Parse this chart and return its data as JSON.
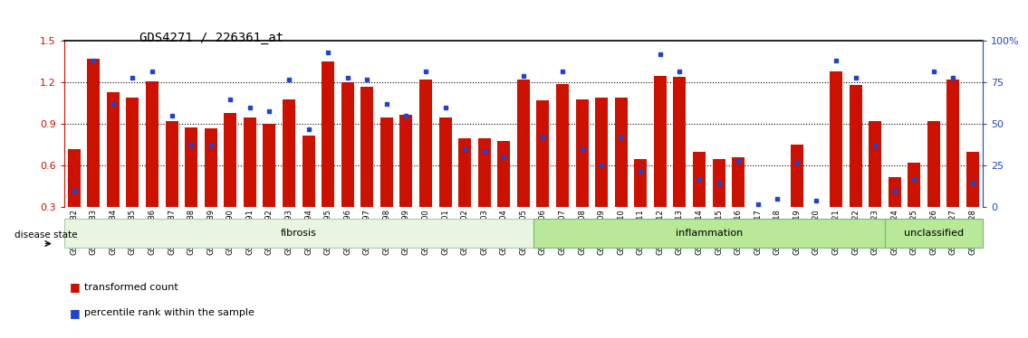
{
  "title": "GDS4271 / 226361_at",
  "samples": [
    "GSM380382",
    "GSM380383",
    "GSM380384",
    "GSM380385",
    "GSM380386",
    "GSM380387",
    "GSM380388",
    "GSM380389",
    "GSM380390",
    "GSM380391",
    "GSM380392",
    "GSM380393",
    "GSM380394",
    "GSM380395",
    "GSM380396",
    "GSM380397",
    "GSM380398",
    "GSM380399",
    "GSM380400",
    "GSM380401",
    "GSM380402",
    "GSM380403",
    "GSM380404",
    "GSM380405",
    "GSM380406",
    "GSM380407",
    "GSM380408",
    "GSM380409",
    "GSM380410",
    "GSM380411",
    "GSM380412",
    "GSM380413",
    "GSM380414",
    "GSM380415",
    "GSM380416",
    "GSM380417",
    "GSM380418",
    "GSM380419",
    "GSM380420",
    "GSM380421",
    "GSM380422",
    "GSM380423",
    "GSM380424",
    "GSM380425",
    "GSM380426",
    "GSM380427",
    "GSM380428"
  ],
  "bar_heights": [
    0.72,
    1.37,
    1.13,
    1.09,
    1.21,
    0.92,
    0.88,
    0.87,
    0.98,
    0.95,
    0.9,
    1.08,
    0.82,
    1.35,
    1.2,
    1.17,
    0.95,
    0.97,
    1.22,
    0.95,
    0.8,
    0.8,
    0.78,
    1.22,
    1.07,
    1.19,
    1.08,
    1.09,
    1.09,
    0.65,
    1.25,
    1.24,
    0.7,
    0.65,
    0.66,
    0.3,
    0.25,
    0.75,
    0.17,
    1.28,
    1.18,
    0.92,
    0.52,
    0.62,
    0.92,
    1.22,
    0.7
  ],
  "percentile_ranks": [
    10,
    88,
    62,
    78,
    82,
    55,
    38,
    37,
    65,
    60,
    58,
    77,
    47,
    93,
    78,
    77,
    62,
    55,
    82,
    60,
    35,
    34,
    30,
    79,
    42,
    82,
    35,
    25,
    42,
    22,
    92,
    82,
    17,
    15,
    28,
    2,
    5,
    27,
    4,
    88,
    78,
    37,
    10,
    17,
    82,
    78,
    15
  ],
  "group_configs": [
    {
      "name": "fibrosis",
      "start": 0,
      "end": 23,
      "bg": "#e8f5e0",
      "border": "#aaccaa"
    },
    {
      "name": "inflammation",
      "start": 24,
      "end": 41,
      "bg": "#b8e898",
      "border": "#77bb77"
    },
    {
      "name": "unclassified",
      "start": 42,
      "end": 46,
      "bg": "#b8e898",
      "border": "#77bb77"
    }
  ],
  "ylim_left": [
    0.3,
    1.5
  ],
  "ylim_right": [
    0,
    100
  ],
  "left_yticks": [
    0.3,
    0.6,
    0.9,
    1.2,
    1.5
  ],
  "right_yticks": [
    0,
    25,
    50,
    75,
    100
  ],
  "bar_color": "#cc1100",
  "dot_color": "#2244cc",
  "background_color": "#ffffff",
  "title_fontsize": 10,
  "tick_label_fontsize": 6,
  "ylabel_fontsize": 8
}
